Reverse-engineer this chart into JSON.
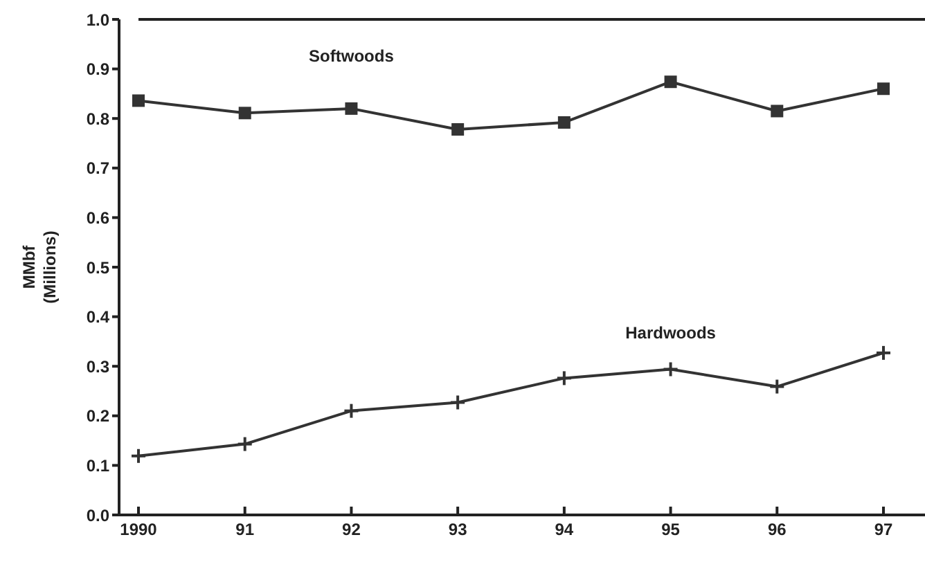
{
  "chart_data": {
    "type": "line",
    "ylabel": "MMbf\n(Millions)",
    "categories": [
      "1990",
      "91",
      "92",
      "93",
      "94",
      "95",
      "96",
      "97"
    ],
    "series": [
      {
        "name": "Softwoods",
        "color": "#333333",
        "marker": "square",
        "values": [
          0.836,
          0.811,
          0.82,
          0.778,
          0.792,
          0.874,
          0.815,
          0.86
        ]
      },
      {
        "name": "Hardwoods",
        "color": "#333333",
        "marker": "cross",
        "values": [
          0.119,
          0.143,
          0.21,
          0.227,
          0.276,
          0.294,
          0.259,
          0.327
        ]
      }
    ],
    "ylim": [
      0,
      1
    ],
    "yticks": [
      {
        "value": 0,
        "label": "0.0"
      },
      0.1,
      0.2,
      0.3,
      0.4,
      0.5,
      0.6,
      0.7,
      0.8,
      0.9,
      {
        "value": 1,
        "label": "1.0"
      }
    ],
    "grid": false,
    "legend": false
  }
}
